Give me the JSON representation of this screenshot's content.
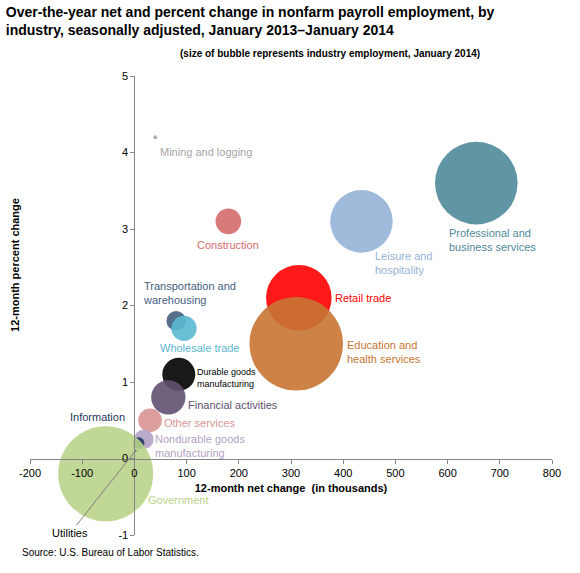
{
  "chart_data": {
    "type": "bubble",
    "title": "Over-the-year net and percent change in nonfarm payroll employment, by industry, seasonally adjusted, January 2013–January 2014",
    "subtitle": "(size of bubble represents industry employment, January 2014)",
    "x_label": "12-month net change  (in thousands)",
    "y_label": "12-month percent change",
    "source": "Source: U.S. Bureau of Labor Statistics.",
    "xlim": [
      -200,
      800
    ],
    "xticks": [
      -200,
      -100,
      0,
      100,
      200,
      300,
      400,
      500,
      600,
      700,
      800
    ],
    "ylim": [
      -1,
      5
    ],
    "yticks": [
      -1,
      0,
      1,
      2,
      3,
      4,
      5
    ],
    "grid": false,
    "series": [
      {
        "name": "Mining and logging",
        "color": "#a6a6a6",
        "x": [
          40
        ],
        "values": [
          4.2
        ],
        "size": [
          900
        ]
      },
      {
        "name": "Construction",
        "color": "#d46b6b",
        "x": [
          180
        ],
        "values": [
          3.1
        ],
        "size": [
          5900
        ]
      },
      {
        "name": "Professional and business services",
        "color": "#4f8a99",
        "x": [
          655
        ],
        "values": [
          3.6
        ],
        "size": [
          19000
        ]
      },
      {
        "name": "Leisure and hospitality",
        "color": "#95b3d7",
        "x": [
          435
        ],
        "values": [
          3.1
        ],
        "size": [
          14400
        ]
      },
      {
        "name": "Retail trade",
        "color": "#ff0000",
        "x": [
          315
        ],
        "values": [
          2.1
        ],
        "size": [
          15100
        ]
      },
      {
        "name": "Education and health services",
        "color": "#c87533",
        "x": [
          310
        ],
        "values": [
          1.5
        ],
        "size": [
          21500
        ]
      },
      {
        "name": "Transportation and warehousing",
        "color": "#44607f",
        "x": [
          80
        ],
        "values": [
          1.8
        ],
        "size": [
          4500
        ]
      },
      {
        "name": "Wholesale trade",
        "color": "#5bb8d0",
        "x": [
          95
        ],
        "values": [
          1.7
        ],
        "size": [
          5800
        ]
      },
      {
        "name": "Durable goods manufacturing",
        "color": "#000000",
        "x": [
          85
        ],
        "values": [
          1.1
        ],
        "size": [
          7600
        ]
      },
      {
        "name": "Financial activities",
        "color": "#605070",
        "x": [
          65
        ],
        "values": [
          0.8
        ],
        "size": [
          7900
        ]
      },
      {
        "name": "Other services",
        "color": "#d99594",
        "x": [
          30
        ],
        "values": [
          0.5
        ],
        "size": [
          5450
        ]
      },
      {
        "name": "Nondurable goods manufacturing",
        "color": "#b3a2c7",
        "x": [
          18
        ],
        "values": [
          0.25
        ],
        "size": [
          4500
        ]
      },
      {
        "name": "Information",
        "color": "#1f3864",
        "x": [
          8
        ],
        "values": [
          0.2
        ],
        "size": [
          2700
        ]
      },
      {
        "name": "Government",
        "color": "#b9d38a",
        "x": [
          -55
        ],
        "values": [
          -0.2
        ],
        "size": [
          21860
        ]
      },
      {
        "name": "Utilities",
        "color": "#4a7a8c",
        "x": [
          2
        ],
        "values": [
          0.1
        ],
        "size": [
          550
        ]
      }
    ]
  }
}
